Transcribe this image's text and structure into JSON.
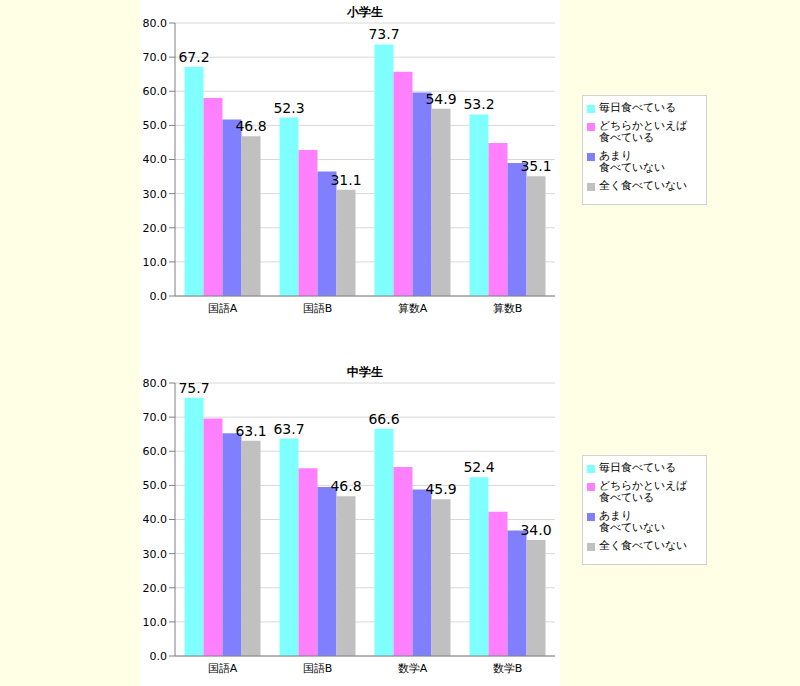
{
  "chart_data": [
    {
      "type": "bar",
      "title": "小学生",
      "categories": [
        "国語A",
        "国語B",
        "算数A",
        "算数B"
      ],
      "ylim": [
        0,
        80
      ],
      "yticks": [
        {
          "value": 0,
          "label": "0.0"
        },
        {
          "value": 10,
          "label": "10.0"
        },
        {
          "value": 20,
          "label": "20.0"
        },
        {
          "value": 30,
          "label": "30.0"
        },
        {
          "value": 40,
          "label": "40.0"
        },
        {
          "value": 50,
          "label": "50.0"
        },
        {
          "value": 60,
          "label": "60.0"
        },
        {
          "value": 70,
          "label": "70.0"
        },
        {
          "value": 80,
          "label": "80.0"
        }
      ],
      "grid": true,
      "legend": "right",
      "series": [
        {
          "name": "毎日食べている",
          "color": "#80ffff",
          "values": [
            67.2,
            52.3,
            73.7,
            53.2
          ],
          "data_labels": true,
          "value_labels": [
            "67.2",
            "52.3",
            "73.7",
            "53.2"
          ]
        },
        {
          "name": "どちらかといえば\n食べている",
          "color": "#ff80ff",
          "values": [
            58.0,
            42.8,
            65.7,
            44.8
          ]
        },
        {
          "name": "あまり\n食べていない",
          "color": "#8080ff",
          "values": [
            51.7,
            36.5,
            59.6,
            39.0
          ]
        },
        {
          "name": "全く食べていない",
          "color": "#c0c0c0",
          "values": [
            46.8,
            31.1,
            54.9,
            35.1
          ],
          "data_labels": true,
          "value_labels": [
            "46.8",
            "31.1",
            "54.9",
            "35.1"
          ]
        }
      ]
    },
    {
      "type": "bar",
      "title": "中学生",
      "categories": [
        "国語A",
        "国語B",
        "数学A",
        "数学B"
      ],
      "ylim": [
        0,
        80
      ],
      "yticks": [
        {
          "value": 0,
          "label": "0.0"
        },
        {
          "value": 10,
          "label": "10.0"
        },
        {
          "value": 20,
          "label": "20.0"
        },
        {
          "value": 30,
          "label": "30.0"
        },
        {
          "value": 40,
          "label": "40.0"
        },
        {
          "value": 50,
          "label": "50.0"
        },
        {
          "value": 60,
          "label": "60.0"
        },
        {
          "value": 70,
          "label": "70.0"
        },
        {
          "value": 80,
          "label": "80.0"
        }
      ],
      "grid": true,
      "legend": "right",
      "series": [
        {
          "name": "毎日食べている",
          "color": "#80ffff",
          "values": [
            75.7,
            63.7,
            66.6,
            52.4
          ],
          "data_labels": true,
          "value_labels": [
            "75.7",
            "63.7",
            "66.6",
            "52.4"
          ]
        },
        {
          "name": "どちらかといえば\n食べている",
          "color": "#ff80ff",
          "values": [
            69.6,
            55.0,
            55.4,
            42.3
          ]
        },
        {
          "name": "あまり\n食べていない",
          "color": "#8080ff",
          "values": [
            65.3,
            49.5,
            48.8,
            36.8
          ]
        },
        {
          "name": "全く食べていない",
          "color": "#c0c0c0",
          "values": [
            63.1,
            46.8,
            45.9,
            34.0
          ],
          "data_labels": true,
          "value_labels": [
            "63.1",
            "46.8",
            "45.9",
            "34.0"
          ]
        }
      ]
    }
  ]
}
